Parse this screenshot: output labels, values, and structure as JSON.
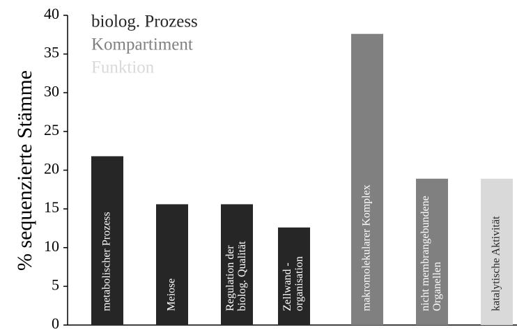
{
  "chart_data": {
    "type": "bar",
    "y_label": "% sequenzierte Stämme",
    "ylim": [
      0,
      40
    ],
    "yticks": [
      0,
      5,
      10,
      15,
      20,
      25,
      30,
      35,
      40
    ],
    "series": [
      {
        "name": "biolog. Prozess",
        "color": "#262626",
        "label_color": "#ffffff",
        "categories": [
          [
            "metabolischer Prozess"
          ],
          [
            "Meiose"
          ],
          [
            "Regulation der",
            "biolog. Qualität"
          ],
          [
            "Zellwand -",
            "organisation"
          ]
        ],
        "values": [
          21.8,
          15.6,
          15.6,
          12.6
        ]
      },
      {
        "name": "Kompartiment",
        "color": "#808080",
        "label_color": "#ffffff",
        "categories": [
          [
            "makromolekularer Komplex"
          ],
          [
            "nicht membrangebundene",
            "Organellen"
          ]
        ],
        "values": [
          37.6,
          18.9
        ]
      },
      {
        "name": "Funktion",
        "color": "#d9d9d9",
        "label_color": "#262626",
        "categories": [
          [
            "katalytische Aktivität"
          ]
        ],
        "values": [
          18.9
        ]
      }
    ]
  }
}
